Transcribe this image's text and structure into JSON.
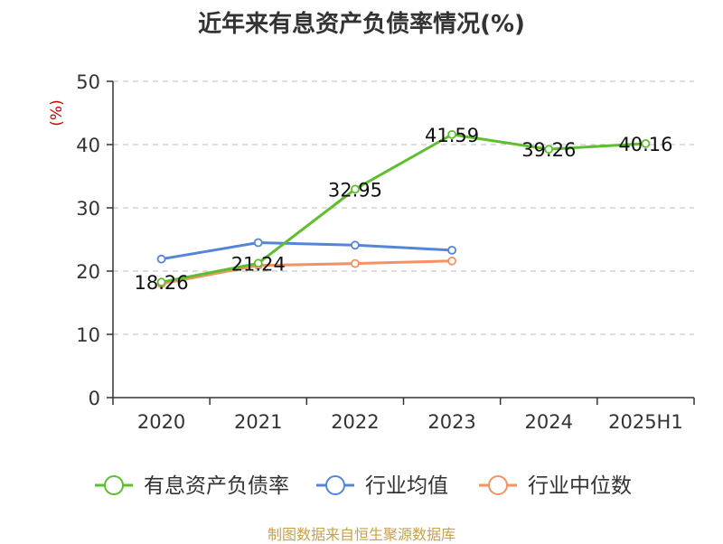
{
  "title": "近年来有息资产负债率情况(%)",
  "source": "制图数据来自恒生聚源数据库",
  "colors": {
    "series_1": "#5dbf2e",
    "series_2": "#5585d8",
    "series_3": "#f39262",
    "axis": "#333333",
    "grid": "#bbbbbb",
    "ylabel": "#cc0000",
    "source": "#c8a04a"
  },
  "chart_data": {
    "type": "line",
    "title": "近年来有息资产负债率情况(%)",
    "xlabel": "",
    "ylabel": "(%)",
    "categories": [
      "2020",
      "2021",
      "2022",
      "2023",
      "2024",
      "2025H1"
    ],
    "ylim": [
      0,
      50
    ],
    "yticks": [
      0,
      10,
      20,
      30,
      40,
      50
    ],
    "grid": true,
    "legend_position": "bottom",
    "series": [
      {
        "name": "有息资产负债率",
        "values": [
          18.26,
          21.24,
          32.95,
          41.59,
          39.26,
          40.16
        ],
        "data_labels": [
          "18.26",
          "21.24",
          "32.95",
          "41.59",
          "39.26",
          "40.16"
        ],
        "color": "#5dbf2e"
      },
      {
        "name": "行业均值",
        "values": [
          21.9,
          24.5,
          24.1,
          23.3,
          null,
          null
        ],
        "color": "#5585d8"
      },
      {
        "name": "行业中位数",
        "values": [
          18.0,
          20.9,
          21.2,
          21.6,
          null,
          null
        ],
        "color": "#f39262"
      }
    ]
  }
}
